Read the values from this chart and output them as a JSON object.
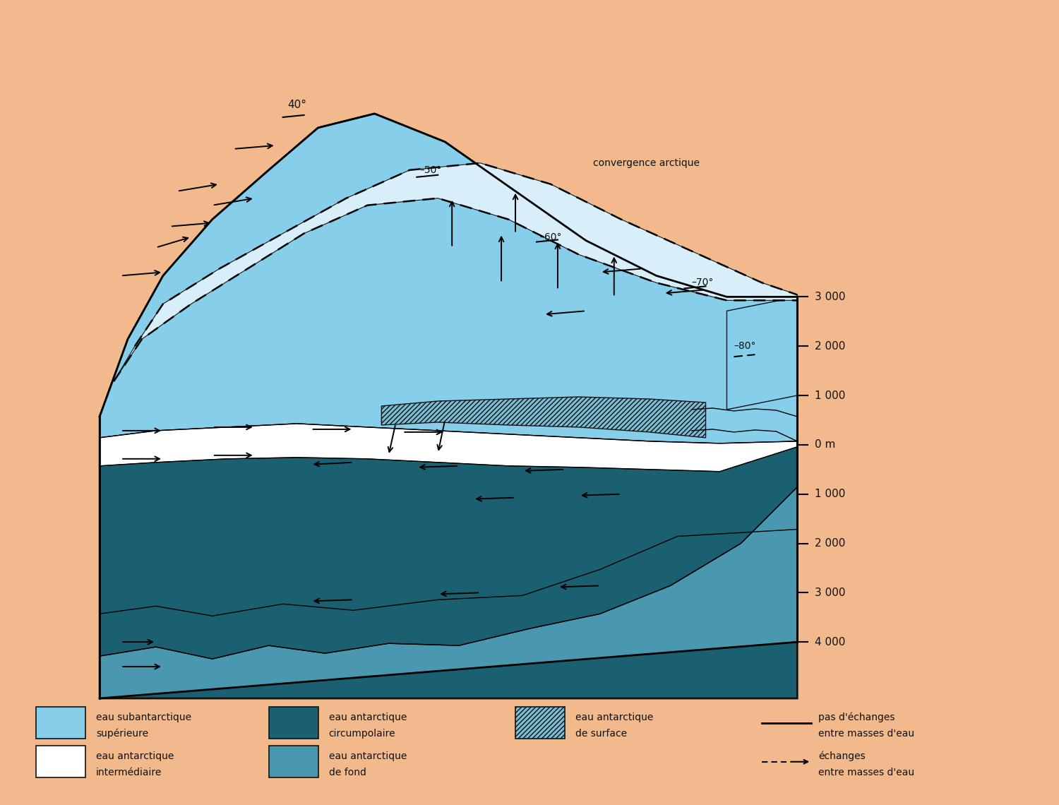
{
  "background_color": "#F2B98C",
  "colors": {
    "subantarctic_upper": "#87CEEB",
    "antarctic_intermediate": "#FFFFFF",
    "circumpolar": "#1B6070",
    "bottom": "#4A98B0",
    "surface_hatched": "#7BBDD4",
    "light_surface_right": "#A8D8EA",
    "outline": "#111111",
    "convergence_band": "#C8E8F4"
  },
  "depth_labels": [
    "3 000",
    "2 000",
    "1 000",
    "0 m",
    "1 000",
    "2 000",
    "3 000",
    "4 000"
  ],
  "convergence_label": "convergence arctique"
}
